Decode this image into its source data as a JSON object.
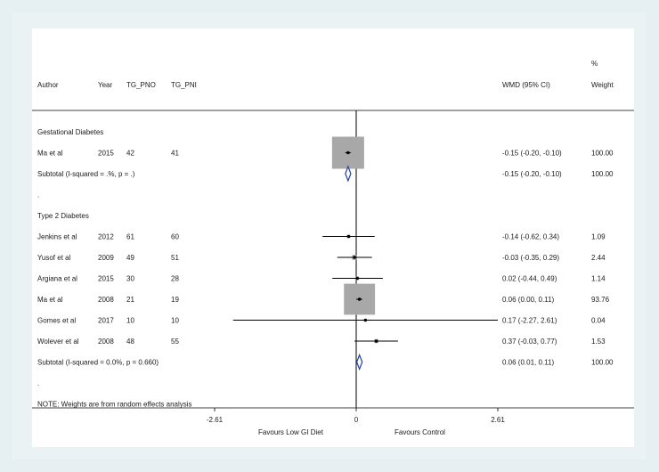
{
  "chart_data": {
    "type": "forest",
    "columns": {
      "author": "Author",
      "year": "Year",
      "tg_pno": "TG_PNO",
      "tg_pni": "TG_PNI",
      "effect": "WMD (95% CI)",
      "weight_pct": "%",
      "weight": "Weight"
    },
    "rows": [
      {
        "kind": "group",
        "label": "Gestational Diabetes"
      },
      {
        "kind": "study",
        "author": "Ma et al",
        "year": "2015",
        "pno": "42",
        "pni": "41",
        "est": -0.15,
        "lo": -0.2,
        "hi": -0.1,
        "ci_text": "-0.15 (-0.20, -0.10)",
        "weight": 100.0,
        "weight_text": "100.00"
      },
      {
        "kind": "subtotal",
        "label": "Subtotal  (I-squared = .%, p = .)",
        "est": -0.15,
        "lo": -0.2,
        "hi": -0.1,
        "ci_text": "-0.15 (-0.20, -0.10)",
        "weight_text": "100.00"
      },
      {
        "kind": "dot",
        "label": "."
      },
      {
        "kind": "group",
        "label": "Type 2 Diabetes"
      },
      {
        "kind": "study",
        "author": "Jenkins et al",
        "year": "2012",
        "pno": "61",
        "pni": "60",
        "est": -0.14,
        "lo": -0.62,
        "hi": 0.34,
        "ci_text": "-0.14 (-0.62, 0.34)",
        "weight": 1.09,
        "weight_text": "1.09"
      },
      {
        "kind": "study",
        "author": "Yusof et al",
        "year": "2009",
        "pno": "49",
        "pni": "51",
        "est": -0.03,
        "lo": -0.35,
        "hi": 0.29,
        "ci_text": "-0.03 (-0.35, 0.29)",
        "weight": 2.44,
        "weight_text": "2.44"
      },
      {
        "kind": "study",
        "author": "Argiana et al",
        "year": "2015",
        "pno": "30",
        "pni": "28",
        "est": 0.02,
        "lo": -0.44,
        "hi": 0.49,
        "ci_text": "0.02 (-0.44, 0.49)",
        "weight": 1.14,
        "weight_text": "1.14"
      },
      {
        "kind": "study",
        "author": "Ma et al",
        "year": "2008",
        "pno": "21",
        "pni": "19",
        "est": 0.06,
        "lo": 0.0,
        "hi": 0.11,
        "ci_text": "0.06 (0.00, 0.11)",
        "weight": 93.76,
        "weight_text": "93.76"
      },
      {
        "kind": "study",
        "author": "Gomes et al",
        "year": "2017",
        "pno": "10",
        "pni": "10",
        "est": 0.17,
        "lo": -2.27,
        "hi": 2.61,
        "ci_text": "0.17 (-2.27, 2.61)",
        "weight": 0.04,
        "weight_text": "0.04"
      },
      {
        "kind": "study",
        "author": "Wolever et al",
        "year": "2008",
        "pno": "48",
        "pni": "55",
        "est": 0.37,
        "lo": -0.03,
        "hi": 0.77,
        "ci_text": "0.37 (-0.03, 0.77)",
        "weight": 1.53,
        "weight_text": "1.53"
      },
      {
        "kind": "subtotal",
        "label": "Subtotal  (I-squared = 0.0%, p = 0.660)",
        "est": 0.06,
        "lo": 0.01,
        "hi": 0.11,
        "ci_text": "0.06 (0.01, 0.11)",
        "weight_text": "100.00"
      },
      {
        "kind": "dot",
        "label": "."
      },
      {
        "kind": "note",
        "label": "NOTE: Weights are from random effects analysis"
      }
    ],
    "x_axis": {
      "ticks": [
        -2.61,
        0,
        2.61
      ],
      "tick_labels": [
        "-2.61",
        "0",
        "2.61"
      ],
      "range": [
        -2.61,
        2.61
      ],
      "left_label": "Favours Low GI Diet",
      "right_label": "Favours Control"
    },
    "colors": {
      "box": "#a8a8a8",
      "diamond": "#1f3fa8",
      "line": "#000000"
    }
  }
}
